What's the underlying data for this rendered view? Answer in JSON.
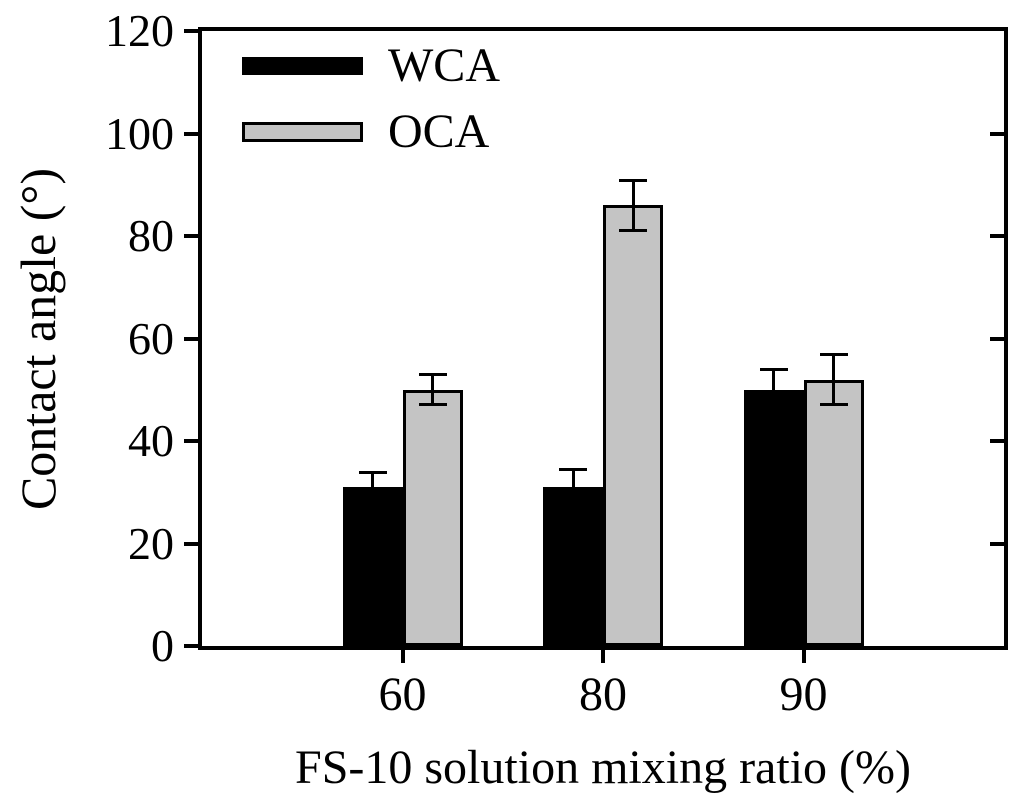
{
  "chart_data": {
    "type": "bar",
    "title": "",
    "xlabel": "FS-10 solution mixing ratio (%)",
    "ylabel": "Contact angle (°)",
    "categories": [
      "60",
      "80",
      "90"
    ],
    "series": [
      {
        "name": "WCA",
        "color": "#000000",
        "border_color": "#000000",
        "values": [
          31,
          31,
          50
        ],
        "errors": [
          3,
          3.5,
          4
        ],
        "error_display": "upper"
      },
      {
        "name": "OCA",
        "color": "#c4c4c4",
        "border_color": "#000000",
        "values": [
          50,
          86,
          52
        ],
        "errors": [
          3,
          5,
          5
        ],
        "error_display": "both"
      }
    ],
    "ylim": [
      0,
      120
    ],
    "yticks": [
      0,
      20,
      40,
      60,
      80,
      100,
      120
    ],
    "grid": false,
    "frame": true,
    "legend_position": "top-left"
  }
}
